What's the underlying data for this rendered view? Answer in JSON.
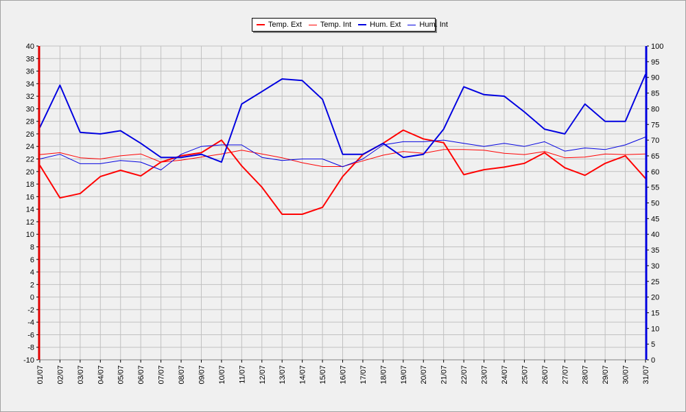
{
  "chart_data": {
    "type": "line",
    "categories": [
      "01/07",
      "02/07",
      "03/07",
      "04/07",
      "05/07",
      "06/07",
      "07/07",
      "08/07",
      "09/07",
      "10/07",
      "11/07",
      "12/07",
      "13/07",
      "14/07",
      "15/07",
      "16/07",
      "17/07",
      "18/07",
      "19/07",
      "20/07",
      "21/07",
      "22/07",
      "23/07",
      "24/07",
      "25/07",
      "26/07",
      "27/07",
      "28/07",
      "29/07",
      "30/07",
      "31/07"
    ],
    "left_axis": {
      "ylim": [
        -10,
        40
      ],
      "ticks": [
        40,
        38,
        36,
        34,
        32,
        30,
        28,
        26,
        24,
        22,
        20,
        18,
        16,
        14,
        12,
        10,
        8,
        6,
        4,
        2,
        0,
        -2,
        -4,
        -6,
        -8,
        -10
      ]
    },
    "right_axis": {
      "ylim": [
        0,
        100
      ],
      "ticks": [
        100,
        95,
        90,
        85,
        80,
        75,
        70,
        65,
        60,
        55,
        50,
        45,
        40,
        35,
        30,
        25,
        20,
        15,
        10,
        5,
        0
      ]
    },
    "grid": true,
    "legend_position": "top-center",
    "series": [
      {
        "name": "Temp. Ext",
        "axis": "left",
        "color": "#ff0000",
        "width": 2,
        "values": [
          21.0,
          15.8,
          16.5,
          19.2,
          20.2,
          19.3,
          21.5,
          22.5,
          23.0,
          25.0,
          20.9,
          17.5,
          13.2,
          13.2,
          14.3,
          19.2,
          22.7,
          24.5,
          26.6,
          25.2,
          24.6,
          19.5,
          20.3,
          20.7,
          21.3,
          23.0,
          20.6,
          19.4,
          21.3,
          22.5,
          18.9
        ]
      },
      {
        "name": "Temp. Int",
        "axis": "left",
        "color": "#ff0000",
        "width": 1,
        "values": [
          22.7,
          23.0,
          22.2,
          22.0,
          22.5,
          22.8,
          21.5,
          21.8,
          22.3,
          22.8,
          23.4,
          22.8,
          22.2,
          21.4,
          20.8,
          20.8,
          21.7,
          22.6,
          23.2,
          22.9,
          23.5,
          23.5,
          23.4,
          22.9,
          22.7,
          23.2,
          22.2,
          22.3,
          22.8,
          22.7,
          22.8
        ]
      },
      {
        "name": "Hum. Ext",
        "axis": "right",
        "color": "#0000e0",
        "width": 2,
        "values": [
          74,
          87.5,
          72.5,
          72,
          73,
          69,
          64.5,
          64.5,
          65.5,
          63,
          81.5,
          85.5,
          89.5,
          89,
          83,
          65.5,
          65.5,
          69,
          64.5,
          65.5,
          73.5,
          87,
          84.5,
          84,
          79,
          73.5,
          72,
          81.5,
          76,
          76,
          91
        ]
      },
      {
        "name": "Hum. Int",
        "axis": "right",
        "color": "#0000e0",
        "width": 1,
        "values": [
          64,
          65.5,
          62.5,
          62.5,
          63.5,
          63,
          60.5,
          65.5,
          68,
          68.5,
          68.5,
          64.5,
          63.5,
          64,
          64,
          61.5,
          64,
          68.5,
          69.5,
          69.5,
          70,
          69,
          68,
          69,
          68,
          69.5,
          66.5,
          67.5,
          67,
          68.5,
          71
        ]
      }
    ]
  }
}
